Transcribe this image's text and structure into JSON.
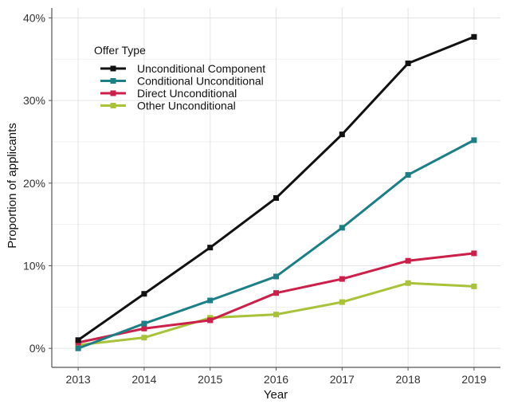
{
  "chart_data": {
    "type": "line",
    "title": "",
    "xlabel": "Year",
    "ylabel": "Proportion of applicants",
    "x": [
      2013,
      2014,
      2015,
      2016,
      2017,
      2018,
      2019
    ],
    "ylim": [
      0,
      40
    ],
    "yticks": [
      0,
      10,
      20,
      30,
      40
    ],
    "ytick_labels": [
      "0%",
      "10%",
      "20%",
      "30%",
      "40%"
    ],
    "xtick_labels": [
      "2013",
      "2014",
      "2015",
      "2016",
      "2017",
      "2018",
      "2019"
    ],
    "grid": true,
    "legend": {
      "title": "Offer Type",
      "placement": "top-left"
    },
    "series": [
      {
        "name": "Unconditional Component",
        "color": "#111111",
        "values": [
          1.0,
          6.6,
          12.2,
          18.2,
          25.9,
          34.5,
          37.7
        ]
      },
      {
        "name": "Conditional Unconditional",
        "color": "#1c7f86",
        "values": [
          0.0,
          3.0,
          5.8,
          8.7,
          14.6,
          21.0,
          25.2
        ]
      },
      {
        "name": "Direct Unconditional",
        "color": "#cc1f4a",
        "values": [
          0.7,
          2.4,
          3.4,
          6.7,
          8.4,
          10.6,
          11.5
        ]
      },
      {
        "name": "Other Unconditional",
        "color": "#a8c23a",
        "values": [
          0.4,
          1.3,
          3.7,
          4.1,
          5.6,
          7.9,
          7.5
        ]
      }
    ]
  }
}
